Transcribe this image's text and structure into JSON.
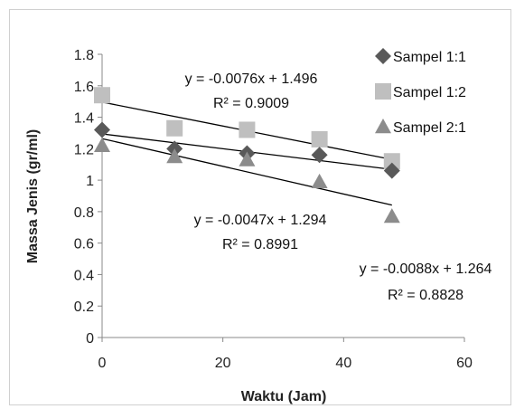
{
  "chart_data": {
    "type": "scatter",
    "xlabel": "Waktu (Jam)",
    "ylabel": "Massa Jenis (gr/ml)",
    "xlim": [
      0,
      60
    ],
    "ylim": [
      0,
      1.8
    ],
    "xticks": [
      0,
      20,
      40,
      60
    ],
    "yticks": [
      0,
      0.2,
      0.4,
      0.6,
      0.8,
      1,
      1.2,
      1.4,
      1.6,
      1.8
    ],
    "xtick_labels": [
      "0",
      "20",
      "40",
      "60"
    ],
    "ytick_labels": [
      "0",
      "0.2",
      "0.4",
      "0.6",
      "0.8",
      "1",
      "1.2",
      "1.4",
      "1.6",
      "1.8"
    ],
    "legend_position": "top-right",
    "grid": false,
    "series": [
      {
        "name": "Sampel 1:1",
        "marker": "diamond",
        "color": "#595959",
        "x": [
          0,
          12,
          24,
          36,
          48
        ],
        "y": [
          1.32,
          1.2,
          1.17,
          1.16,
          1.06
        ],
        "trendline": {
          "slope": -0.0047,
          "intercept": 1.294,
          "equation": "y = -0.0047x + 1.294",
          "r2": "R² = 0.8991"
        }
      },
      {
        "name": "Sampel 1:2",
        "marker": "square",
        "color": "#bfbfbf",
        "x": [
          0,
          12,
          24,
          36,
          48
        ],
        "y": [
          1.54,
          1.33,
          1.32,
          1.26,
          1.12
        ],
        "trendline": {
          "slope": -0.0076,
          "intercept": 1.496,
          "equation": "y = -0.0076x + 1.496",
          "r2": "R² = 0.9009"
        }
      },
      {
        "name": "Sampel 2:1",
        "marker": "triangle",
        "color": "#8c8c8c",
        "x": [
          0,
          12,
          24,
          36,
          48
        ],
        "y": [
          1.22,
          1.15,
          1.13,
          0.99,
          0.77
        ],
        "trendline": {
          "slope": -0.0088,
          "intercept": 1.264,
          "equation": "y = -0.0088x + 1.264",
          "r2": "R² = 0.8828"
        }
      }
    ]
  }
}
